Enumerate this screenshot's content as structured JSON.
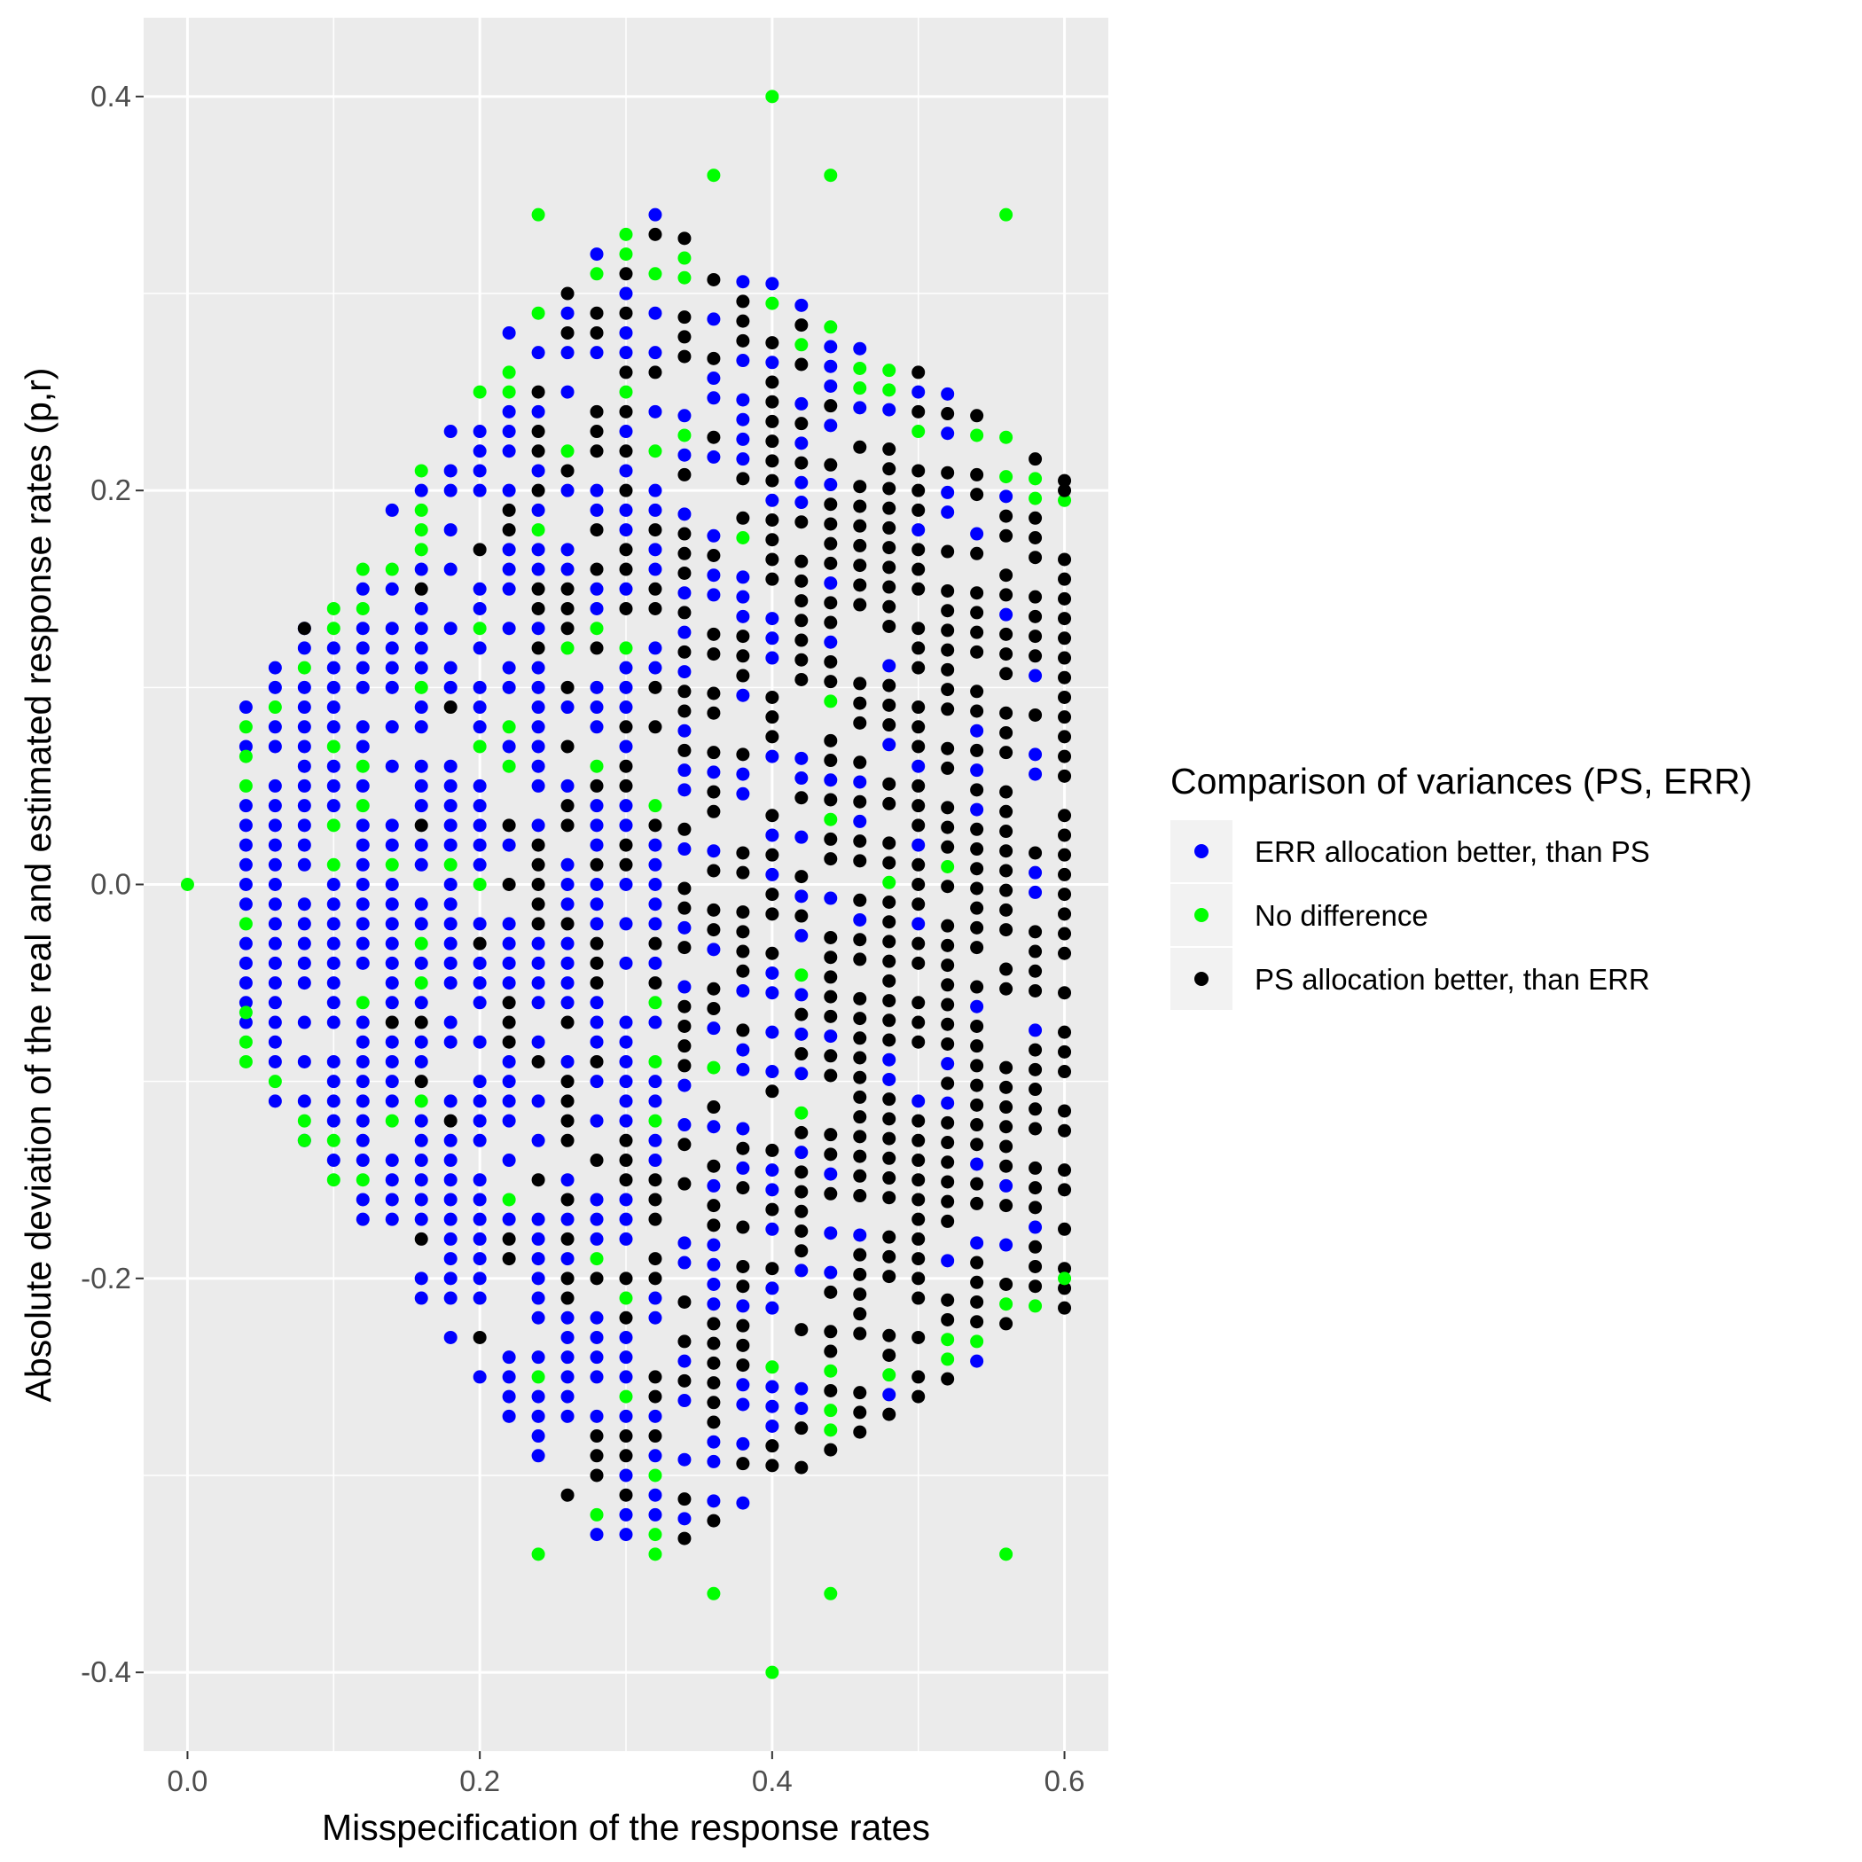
{
  "chart_data": {
    "type": "scatter",
    "title": "",
    "xlabel": "Misspecification of the response rates",
    "ylabel": "Absolute deviation of the real and estimated response rates (p,r)",
    "xlim": [
      -0.03,
      0.63
    ],
    "ylim": [
      -0.44,
      0.44
    ],
    "x_ticks": [
      0.0,
      0.2,
      0.4,
      0.6
    ],
    "x_tick_labels": [
      "0.0",
      "0.2",
      "0.4",
      "0.6"
    ],
    "y_ticks": [
      -0.4,
      -0.2,
      0.0,
      0.2,
      0.4
    ],
    "y_tick_labels": [
      "-0.4",
      "-0.2",
      "0.0",
      "0.2",
      "0.4"
    ],
    "grid": true,
    "legend_position": "right",
    "legend_title": "Comparison of variances (PS, ERR)",
    "x_step": 0.02,
    "y_step": 0.01,
    "series": [
      {
        "name": "ERR allocation better, than PS",
        "color": "#0000ff"
      },
      {
        "name": "No difference",
        "color": "#00ff00"
      },
      {
        "name": "PS allocation better, than ERR",
        "color": "#000000"
      }
    ],
    "notable_points": [
      {
        "x": 0.0,
        "y": 0.0,
        "series": "No difference"
      },
      {
        "x": 0.4,
        "y": 0.4,
        "series": "No difference"
      },
      {
        "x": 0.4,
        "y": -0.4,
        "series": "No difference"
      },
      {
        "x": 0.36,
        "y": 0.36,
        "series": "No difference"
      },
      {
        "x": 0.44,
        "y": 0.36,
        "series": "No difference"
      },
      {
        "x": 0.36,
        "y": -0.36,
        "series": "No difference"
      },
      {
        "x": 0.44,
        "y": -0.36,
        "series": "No difference"
      },
      {
        "x": 0.6,
        "y": 0.2,
        "series": "PS allocation better, than ERR"
      },
      {
        "x": 0.6,
        "y": -0.2,
        "series": "No difference"
      },
      {
        "x": 0.08,
        "y": 0.13,
        "series": "PS allocation better, than ERR"
      },
      {
        "x": 0.08,
        "y": -0.13,
        "series": "No difference"
      },
      {
        "x": 0.04,
        "y": 0.065,
        "series": "No difference"
      },
      {
        "x": 0.04,
        "y": -0.065,
        "series": "No difference"
      },
      {
        "x": 0.22,
        "y": 0.28,
        "series": "ERR allocation better, than PS"
      },
      {
        "x": 0.24,
        "y": 0.34,
        "series": "No difference"
      },
      {
        "x": 0.24,
        "y": -0.34,
        "series": "No difference"
      },
      {
        "x": 0.56,
        "y": 0.34,
        "series": "No difference"
      },
      {
        "x": 0.56,
        "y": -0.34,
        "series": "No difference"
      }
    ]
  }
}
